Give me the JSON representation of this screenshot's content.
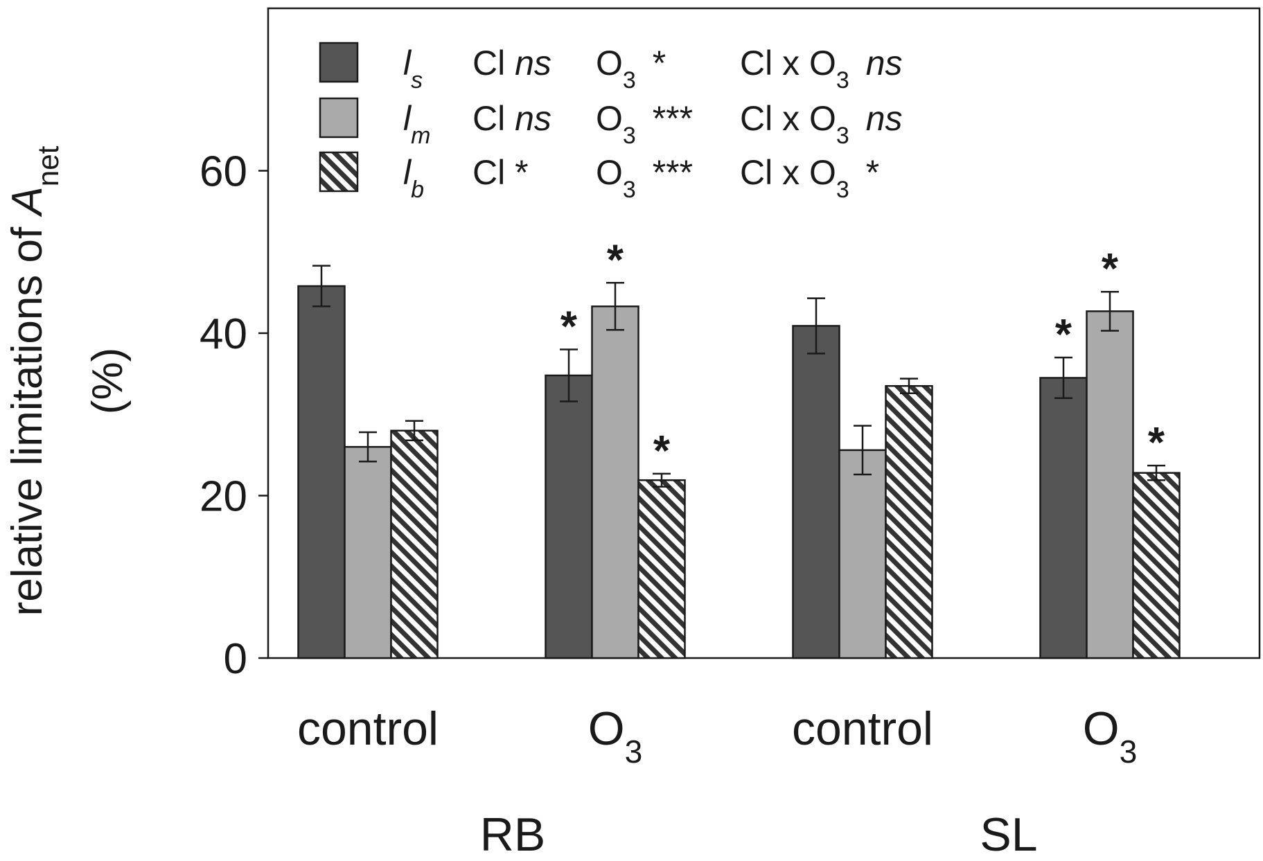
{
  "chart_data": {
    "type": "bar",
    "ylabel_main": "relative limitations of ",
    "ylabel_var": "A",
    "ylabel_sub": "net",
    "ylabel_unit": "(%)",
    "ylim": [
      0,
      80
    ],
    "yticks": [
      "0",
      "20",
      "40",
      "60"
    ],
    "yticks_values": [
      0,
      20,
      40,
      60
    ],
    "groups": [
      {
        "name": "RB",
        "categories": [
          {
            "label": "control",
            "sub": ""
          },
          {
            "label": "O",
            "sub": "3"
          }
        ]
      },
      {
        "name": "SL",
        "categories": [
          {
            "label": "control",
            "sub": ""
          },
          {
            "label": "O",
            "sub": "3"
          }
        ]
      }
    ],
    "series": [
      {
        "key": "ls",
        "sym": "l",
        "sub": "s",
        "fill": "#555555",
        "values": [
          45.8,
          34.8,
          40.9,
          34.5
        ],
        "errors": [
          2.5,
          3.2,
          3.4,
          2.5
        ],
        "stars": [
          "",
          "*",
          "",
          "*"
        ],
        "stats": {
          "cl_label": "Cl",
          "cl": "ns",
          "o3_label": "O",
          "o3_sub": "3",
          "o3": "*",
          "inter_label": "Cl x O",
          "inter_sub": "3",
          "inter": "ns"
        }
      },
      {
        "key": "lm",
        "sym": "l",
        "sub": "m",
        "fill": "#aaaaaa",
        "values": [
          26.0,
          43.3,
          25.6,
          42.7
        ],
        "errors": [
          1.8,
          2.9,
          3.0,
          2.4
        ],
        "stars": [
          "",
          "*",
          "",
          "*"
        ],
        "stats": {
          "cl_label": "Cl",
          "cl": "ns",
          "o3_label": "O",
          "o3_sub": "3",
          "o3": "***",
          "inter_label": "Cl x O",
          "inter_sub": "3",
          "inter": "ns"
        }
      },
      {
        "key": "lb",
        "sym": "l",
        "sub": "b",
        "fill": "hatch",
        "values": [
          28.0,
          21.9,
          33.5,
          22.8
        ],
        "errors": [
          1.2,
          0.8,
          0.9,
          0.9
        ],
        "stars": [
          "",
          "*",
          "",
          "*"
        ],
        "stats": {
          "cl_label": "Cl",
          "cl": "*",
          "o3_label": "O",
          "o3_sub": "3",
          "o3": "***",
          "inter_label": "Cl x O",
          "inter_sub": "3",
          "inter": "*"
        }
      }
    ],
    "legend_position": "top-left",
    "grid": false
  }
}
